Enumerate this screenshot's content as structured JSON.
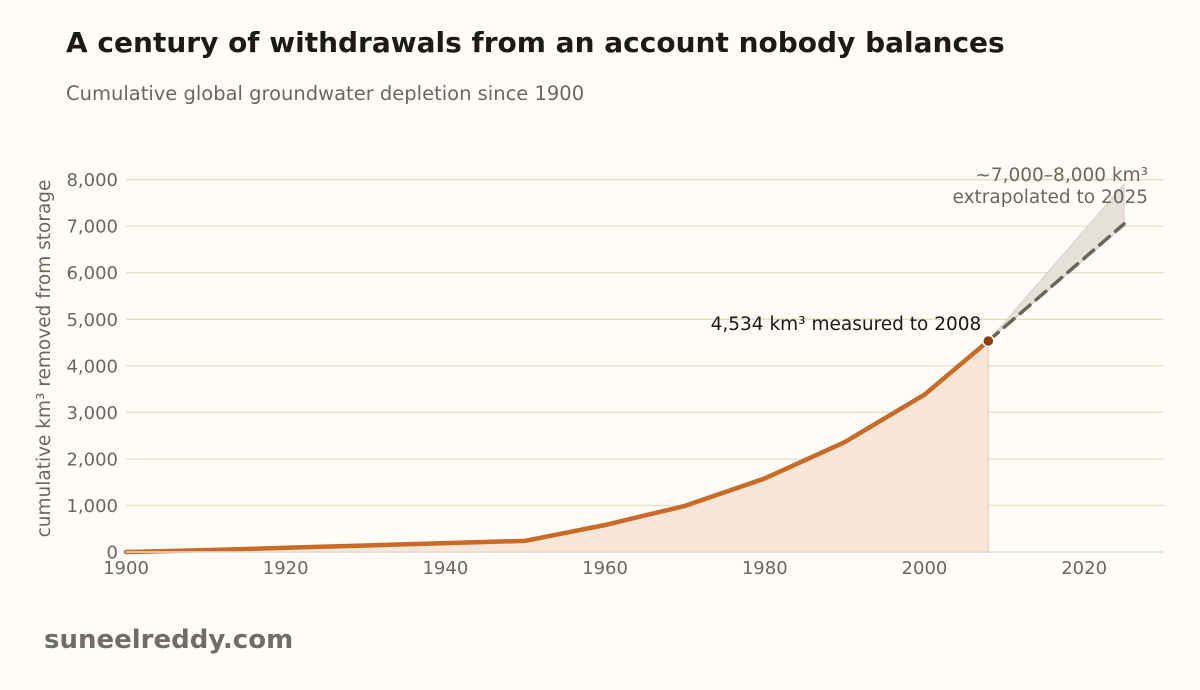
{
  "header": {
    "title": "A century of withdrawals from an account nobody balances",
    "subtitle": "Cumulative global groundwater depletion since 1900"
  },
  "footer": {
    "site": "suneelreddy.com"
  },
  "colors": {
    "background": "#fffcf7",
    "measured_line": "#c96a26",
    "measured_fill": "#f8e6d8",
    "endpoint_marker": "#8a3f10",
    "projection_line": "#6b655c",
    "projection_band": "#e4e0da",
    "grid": "#e6dfcd"
  },
  "chart_data": {
    "type": "line",
    "title": "A century of withdrawals from an account nobody balances",
    "subtitle": "Cumulative global groundwater depletion since 1900",
    "xlabel": "",
    "ylabel": "cumulative km³ removed from storage",
    "xlim": [
      1900,
      2030
    ],
    "ylim": [
      0,
      8400
    ],
    "x_ticks": [
      1900,
      1920,
      1940,
      1960,
      1980,
      2000,
      2020
    ],
    "x_tick_labels": [
      "1900",
      "1920",
      "1940",
      "1960",
      "1980",
      "2000",
      "2020"
    ],
    "y_ticks": [
      0,
      1000,
      2000,
      3000,
      4000,
      5000,
      6000,
      7000,
      8000
    ],
    "y_tick_labels": [
      "0",
      "1,000",
      "2,000",
      "3,000",
      "4,000",
      "5,000",
      "6,000",
      "7,000",
      "8,000"
    ],
    "grid": "horizontal",
    "legend": "none",
    "series": [
      {
        "style": "solid line with shaded area",
        "x": [
          1900,
          1910,
          1920,
          1930,
          1940,
          1950,
          1960,
          1970,
          1980,
          1990,
          2000,
          2008
        ],
        "y": [
          0,
          40,
          90,
          140,
          190,
          240,
          580,
          990,
          1580,
          2360,
          3380,
          4534
        ]
      },
      {
        "style": "dashed line",
        "x": [
          2008,
          2025
        ],
        "y": [
          4534,
          7050
        ]
      }
    ],
    "band": {
      "x": [
        2008,
        2025
      ],
      "low": [
        4534,
        7000
      ],
      "high": [
        4534,
        7900
      ]
    },
    "annotations": [
      {
        "text": "4,534 km³ measured to 2008",
        "x": 2008,
        "y": 4534
      },
      {
        "text_lines": [
          "~7,000–8,000 km³",
          "extrapolated to 2025"
        ],
        "x": 2025,
        "y": 8000
      }
    ]
  }
}
